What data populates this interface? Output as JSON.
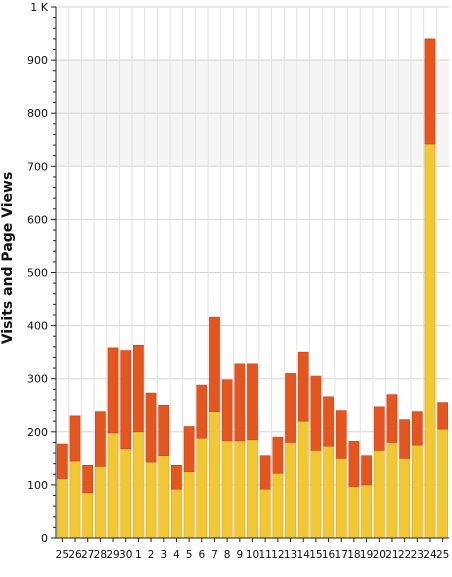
{
  "chart_data": {
    "type": "bar",
    "stacked": true,
    "title": "",
    "xlabel": "",
    "ylabel": "Visits and Page Views",
    "ylim": [
      0,
      1000
    ],
    "y_ticks": [
      "0",
      "100",
      "200",
      "300",
      "400",
      "500",
      "600",
      "700",
      "800",
      "900",
      "1 K"
    ],
    "grid": true,
    "legend": "none",
    "categories": [
      "25",
      "26",
      "27",
      "28",
      "29",
      "30",
      "1",
      "2",
      "3",
      "4",
      "5",
      "6",
      "7",
      "8",
      "9",
      "10",
      "11",
      "12",
      "13",
      "14",
      "15",
      "16",
      "17",
      "18",
      "19",
      "20",
      "21",
      "22",
      "23",
      "24",
      "25"
    ],
    "series": [
      {
        "values": [
          112,
          145,
          85,
          135,
          198,
          168,
          200,
          143,
          155,
          92,
          125,
          188,
          238,
          183,
          183,
          185,
          92,
          122,
          180,
          220,
          165,
          173,
          150,
          97,
          100,
          165,
          180,
          150,
          175,
          742,
          205
        ],
        "color": "#f2c832"
      },
      {
        "values": [
          65,
          85,
          52,
          103,
          160,
          185,
          163,
          130,
          95,
          45,
          85,
          100,
          178,
          115,
          145,
          143,
          63,
          68,
          130,
          130,
          140,
          93,
          90,
          85,
          55,
          82,
          90,
          73,
          63,
          198,
          50
        ],
        "color": "#e5561e"
      }
    ]
  }
}
